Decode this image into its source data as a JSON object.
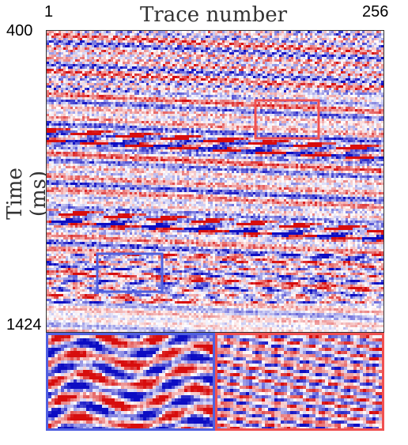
{
  "figure": {
    "title": "Trace number",
    "ylabel": "Time (ms)",
    "x_start": "1",
    "x_end": "256",
    "y_start": "400",
    "y_end": "1424"
  },
  "colors": {
    "positive": "#d01010",
    "negative": "#1020c0",
    "zero": "#ffffff",
    "box_blue": "#5060e0",
    "box_red": "#f05050"
  }
}
